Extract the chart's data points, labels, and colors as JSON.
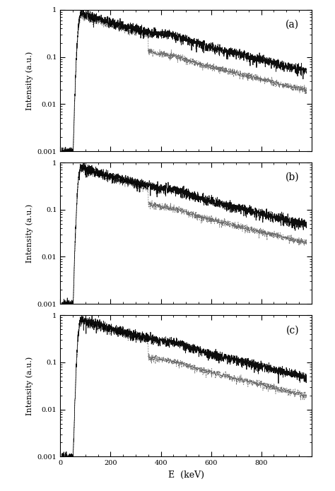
{
  "panels": [
    "(a)",
    "(b)",
    "(c)"
  ],
  "x_label": "E  (keV)",
  "y_label": "Intensity (a.u.)",
  "x_min": 0,
  "x_max": 1000,
  "y_min": 0.001,
  "y_max": 1,
  "yticks": [
    0.001,
    0.01,
    0.1,
    1
  ],
  "ytick_labels": [
    "0.001",
    "0.01",
    "0.1",
    "1"
  ],
  "xticks": [
    0,
    200,
    400,
    600,
    800
  ],
  "background_color": "#ffffff",
  "line_color_solid": "#000000",
  "line_color_dashed": "#555555",
  "seed": 42
}
